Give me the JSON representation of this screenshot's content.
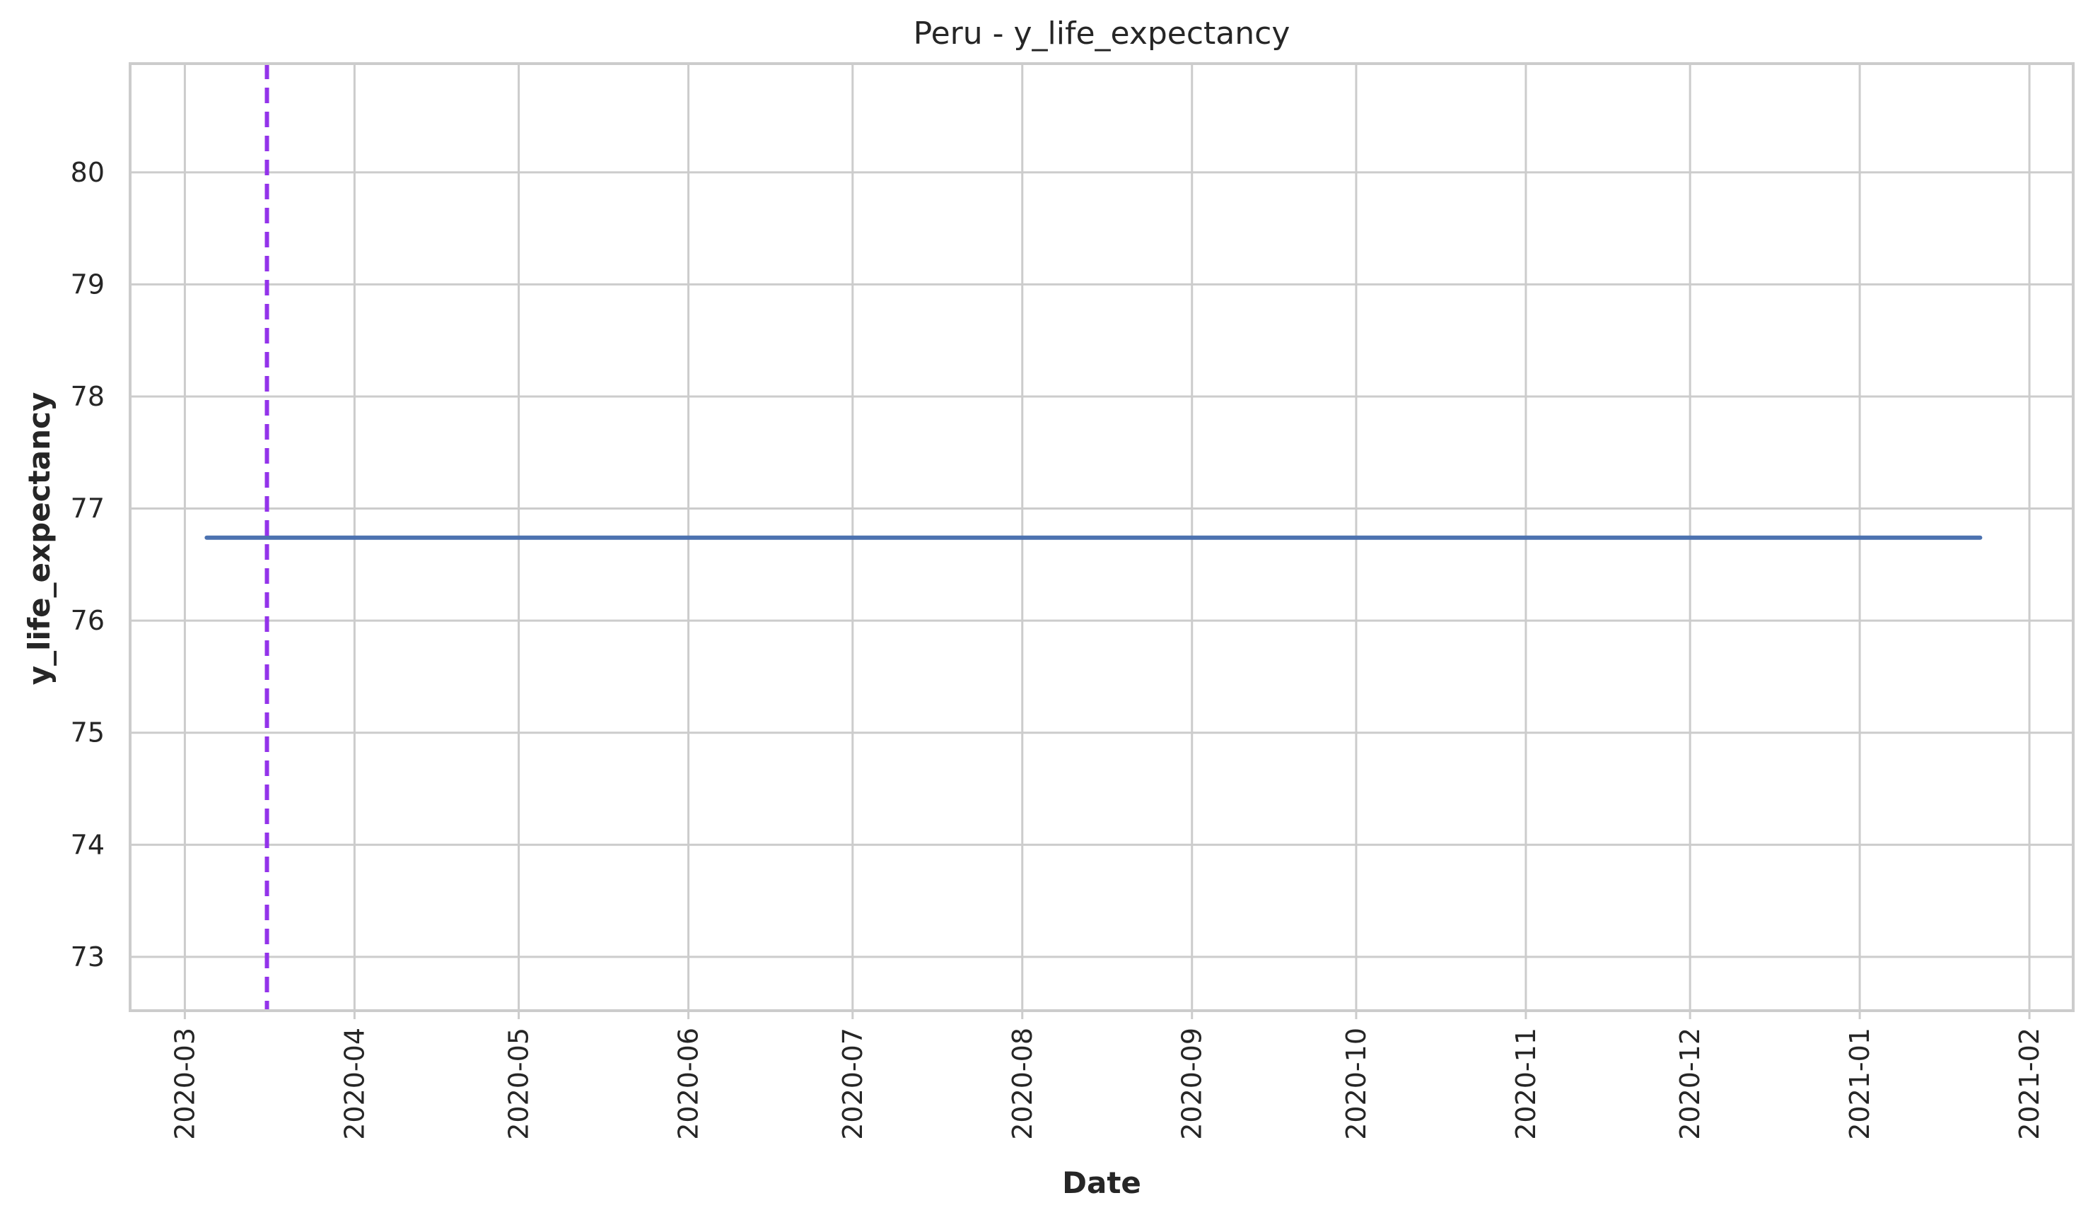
{
  "chart_data": {
    "type": "line",
    "title": "Peru - y_life_expectancy",
    "xlabel": "Date",
    "ylabel": "y_life_expectancy",
    "x_ticks": [
      "2020-03",
      "2020-04",
      "2020-05",
      "2020-06",
      "2020-07",
      "2020-08",
      "2020-09",
      "2020-10",
      "2020-11",
      "2020-12",
      "2021-01",
      "2021-02"
    ],
    "y_ticks": [
      73,
      74,
      75,
      76,
      77,
      78,
      79,
      80
    ],
    "xlim": [
      "2020-02-20",
      "2021-02-09"
    ],
    "ylim": [
      72.52,
      80.97
    ],
    "grid": true,
    "series": [
      {
        "color": "#4c72b0",
        "x": [
          "2020-03-05",
          "2021-01-23"
        ],
        "y": [
          76.74,
          76.74
        ]
      }
    ],
    "vertical_lines": [
      {
        "x": "2020-03-16",
        "color": "#9333ea",
        "style": "dashed"
      }
    ]
  }
}
